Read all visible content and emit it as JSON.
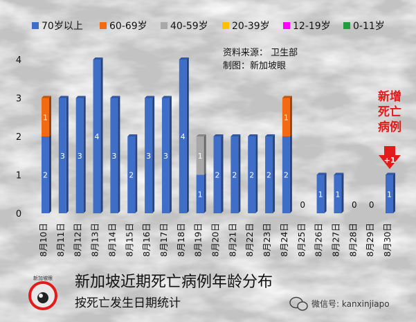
{
  "chart_data": {
    "type": "bar",
    "stacked": true,
    "title": "新加坡近期死亡病例年龄分布",
    "subtitle": "按死亡发生日期统计",
    "source_lines": [
      "资料来源： 卫生部",
      "制图：新加坡眼"
    ],
    "annotation": {
      "text": "新增死亡病例",
      "date": "8月30日",
      "badge": "+1"
    },
    "categories": [
      "8月10日",
      "8月11日",
      "8月12日",
      "8月13日",
      "8月14日",
      "8月15日",
      "8月16日",
      "8月17日",
      "8月18日",
      "8月19日",
      "8月20日",
      "8月21日",
      "8月22日",
      "8月23日",
      "8月24日",
      "8月25日",
      "8月26日",
      "8月27日",
      "8月28日",
      "8月29日",
      "8月30日"
    ],
    "series": [
      {
        "name": "70岁以上",
        "color": "#3f6ec9",
        "values": [
          2,
          3,
          3,
          4,
          3,
          2,
          3,
          3,
          4,
          1,
          2,
          2,
          2,
          2,
          2,
          0,
          1,
          1,
          0,
          0,
          1
        ]
      },
      {
        "name": "60-69岁",
        "color": "#f26a11",
        "values": [
          1,
          0,
          0,
          0,
          0,
          0,
          0,
          0,
          0,
          0,
          0,
          0,
          0,
          0,
          1,
          0,
          0,
          0,
          0,
          0,
          0
        ]
      },
      {
        "name": "40-59岁",
        "color": "#a9a9a9",
        "values": [
          0,
          0,
          0,
          0,
          0,
          0,
          0,
          0,
          0,
          1,
          0,
          0,
          0,
          0,
          0,
          0,
          0,
          0,
          0,
          0,
          0
        ]
      },
      {
        "name": "20-39岁",
        "color": "#ffc000",
        "values": [
          0,
          0,
          0,
          0,
          0,
          0,
          0,
          0,
          0,
          0,
          0,
          0,
          0,
          0,
          0,
          0,
          0,
          0,
          0,
          0,
          0
        ]
      },
      {
        "name": "12-19岁",
        "color": "#ff00ff",
        "values": [
          0,
          0,
          0,
          0,
          0,
          0,
          0,
          0,
          0,
          0,
          0,
          0,
          0,
          0,
          0,
          0,
          0,
          0,
          0,
          0,
          0
        ]
      },
      {
        "name": "0-11岁",
        "color": "#1e9e3e",
        "values": [
          0,
          0,
          0,
          0,
          0,
          0,
          0,
          0,
          0,
          0,
          0,
          0,
          0,
          0,
          0,
          0,
          0,
          0,
          0,
          0,
          0
        ]
      }
    ],
    "yticks": [
      0,
      1,
      2,
      3,
      4
    ],
    "ylim": [
      0,
      4
    ],
    "grid": false,
    "legend_position": "top"
  },
  "watermark": {
    "text": "微信号: kanxinjiapo"
  },
  "logo": {
    "text": "新加坡眼"
  }
}
